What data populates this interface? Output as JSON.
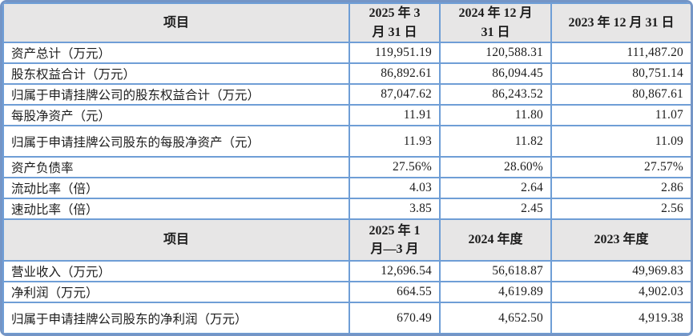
{
  "colors": {
    "border_outer": "#7495c6",
    "border_inner": "#6f9ed6",
    "header_bg": "#e7e6e6",
    "text": "#1c1c1c"
  },
  "table": {
    "sections": [
      {
        "header": {
          "item": "项目",
          "c1": "2025 年 3\n月 31 日",
          "c2": "2024 年 12 月\n31 日",
          "c3": "2023 年 12 月 31 日"
        },
        "rows": [
          {
            "label": "资产总计（万元）",
            "c1": "119,951.19",
            "c2": "120,588.31",
            "c3": "111,487.20"
          },
          {
            "label": "股东权益合计（万元）",
            "c1": "86,892.61",
            "c2": "86,094.45",
            "c3": "80,751.14"
          },
          {
            "label": "归属于申请挂牌公司的股东权益合计（万元）",
            "c1": "87,047.62",
            "c2": "86,243.52",
            "c3": "80,867.61"
          },
          {
            "label": "每股净资产（元）",
            "c1": "11.91",
            "c2": "11.80",
            "c3": "11.07"
          },
          {
            "label": "归属于申请挂牌公司股东的每股净资产（元）",
            "c1": "11.93",
            "c2": "11.82",
            "c3": "11.09"
          },
          {
            "label": "资产负债率",
            "c1": "27.56%",
            "c2": "28.60%",
            "c3": "27.57%"
          },
          {
            "label": "流动比率（倍）",
            "c1": "4.03",
            "c2": "2.64",
            "c3": "2.86"
          },
          {
            "label": "速动比率（倍）",
            "c1": "3.85",
            "c2": "2.45",
            "c3": "2.56"
          }
        ]
      },
      {
        "header": {
          "item": "项目",
          "c1": "2025 年 1\n月—3 月",
          "c2": "2024 年度",
          "c3": "2023 年度"
        },
        "rows": [
          {
            "label": "营业收入（万元）",
            "c1": "12,696.54",
            "c2": "56,618.87",
            "c3": "49,969.83"
          },
          {
            "label": "净利润（万元）",
            "c1": "664.55",
            "c2": "4,619.89",
            "c3": "4,902.03"
          },
          {
            "label": "归属于申请挂牌公司股东的净利润（万元）",
            "c1": "670.49",
            "c2": "4,652.50",
            "c3": "4,919.38"
          }
        ]
      }
    ]
  }
}
